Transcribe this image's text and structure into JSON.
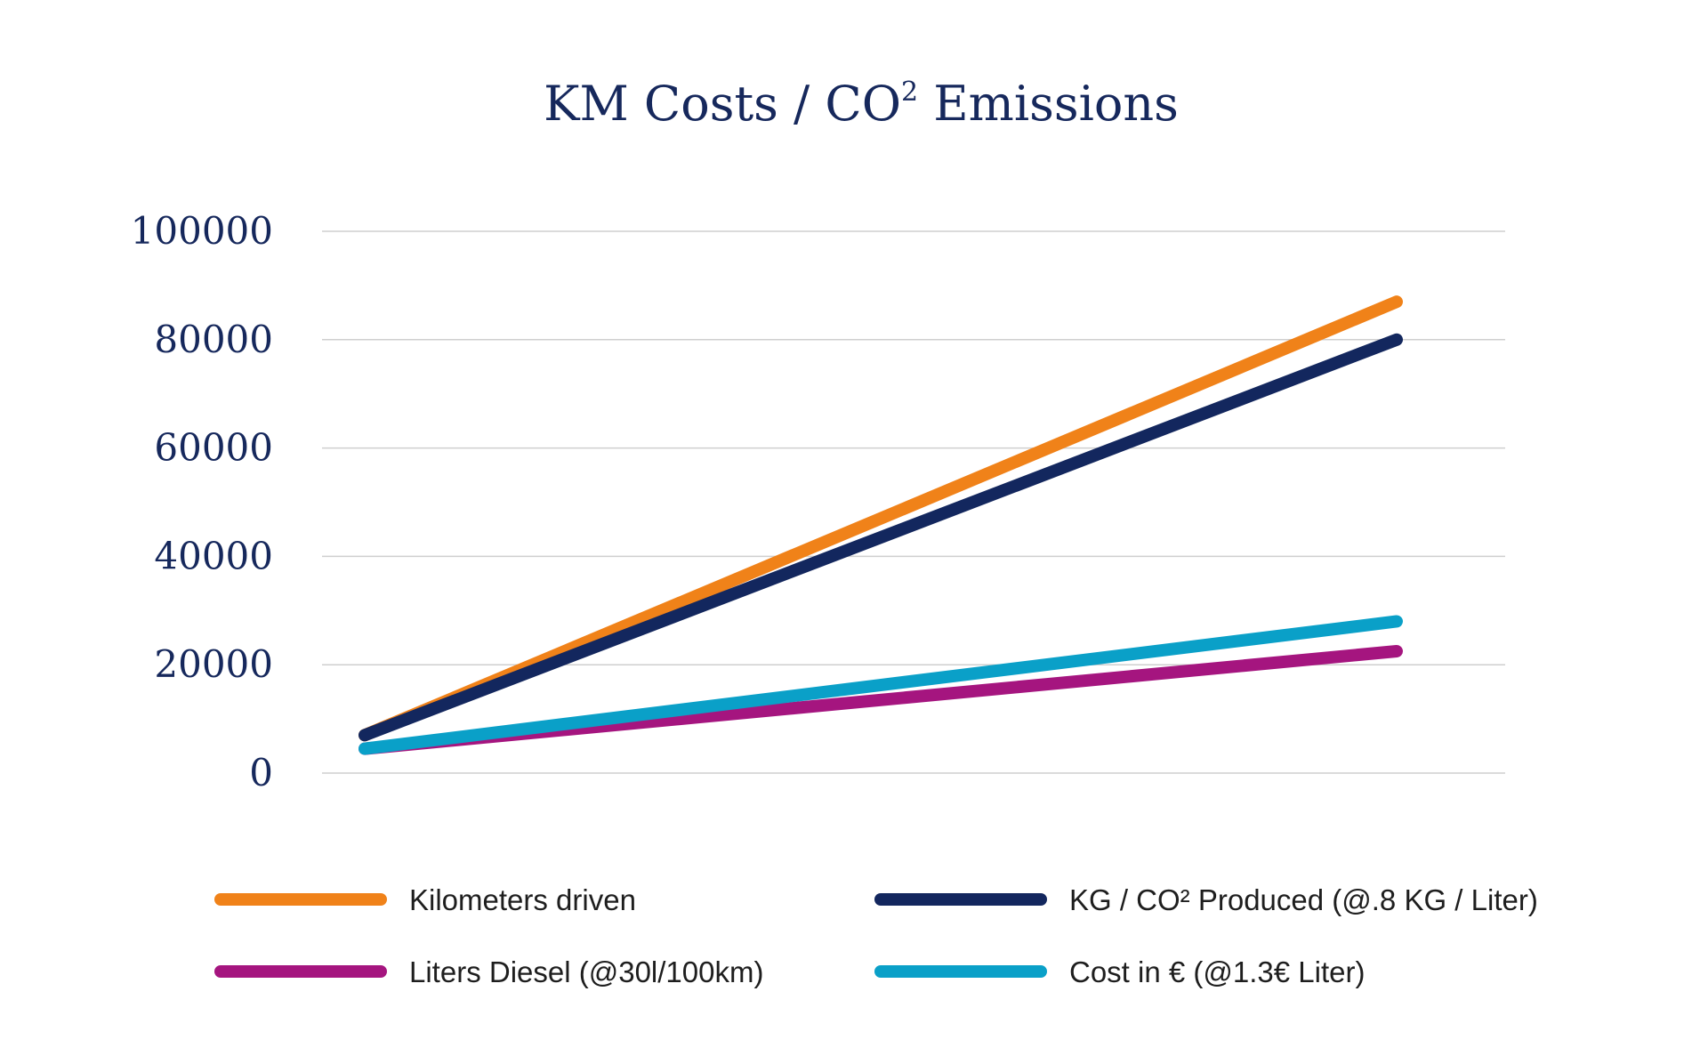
{
  "chart_data": {
    "type": "line",
    "title": {
      "main": "KM Costs / CO",
      "sup": "2",
      "rest": " Emissions"
    },
    "xlabel": "",
    "ylabel": "",
    "x": [
      0,
      1
    ],
    "ylim": [
      0,
      100000
    ],
    "yticks": [
      0,
      20000,
      40000,
      60000,
      80000,
      100000
    ],
    "ytick_labels": [
      "0",
      "20000",
      "40000",
      "60000",
      "80000",
      "100000"
    ],
    "grid": true,
    "legend_position": "bottom",
    "series": [
      {
        "name": "Kilometers driven",
        "color": "#f08219",
        "values": [
          7000,
          87000
        ]
      },
      {
        "name": "KG / CO² Produced (@.8 KG / Liter)",
        "color": "#13275e",
        "values": [
          7000,
          80000
        ]
      },
      {
        "name": "Liters Diesel (@30l/100km)",
        "color": "#a5157f",
        "values": [
          4500,
          22500
        ]
      },
      {
        "name": "Cost in € (@1.3€ Liter)",
        "color": "#0aa0c8",
        "values": [
          4500,
          28000
        ]
      }
    ]
  }
}
